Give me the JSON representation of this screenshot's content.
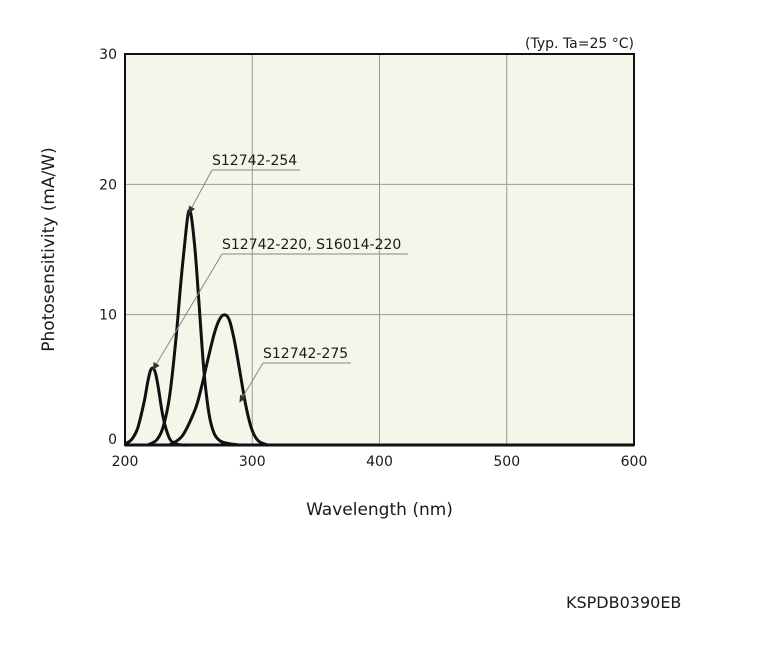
{
  "chart_data": {
    "type": "line",
    "xlabel": "Wavelength (nm)",
    "ylabel": "Photosensitivity (mA/W)",
    "condition_note": "(Typ. Ta=25 °C)",
    "xlim": [
      200,
      600
    ],
    "ylim": [
      0,
      30
    ],
    "x_ticks": [
      "200",
      "300",
      "400",
      "500",
      "600"
    ],
    "y_ticks": [
      "0",
      "10",
      "20",
      "30"
    ],
    "grid": true,
    "series": [
      {
        "name": "S12742-220, S16014-220",
        "x": [
          200,
          205,
          210,
          215,
          218,
          220,
          222,
          224,
          226,
          230,
          235,
          240,
          245,
          250
        ],
        "y": [
          0.1,
          0.4,
          1.3,
          3.3,
          4.9,
          5.7,
          5.9,
          5.5,
          4.5,
          2.1,
          0.5,
          0.1,
          0.0,
          0.0
        ]
      },
      {
        "name": "S12742-254",
        "x": [
          218,
          225,
          230,
          235,
          240,
          244,
          248,
          250,
          252,
          255,
          258,
          262,
          266,
          270,
          275,
          282,
          290
        ],
        "y": [
          0.0,
          0.4,
          1.4,
          3.7,
          8.1,
          12.6,
          16.5,
          17.9,
          17.6,
          15.0,
          11.1,
          5.7,
          2.4,
          0.9,
          0.3,
          0.1,
          0.0
        ]
      },
      {
        "name": "S12742-275",
        "x": [
          235,
          245,
          255,
          260,
          265,
          270,
          274,
          278,
          282,
          286,
          290,
          295,
          300,
          305,
          312
        ],
        "y": [
          0.0,
          0.7,
          2.7,
          4.4,
          6.5,
          8.5,
          9.6,
          10.0,
          9.6,
          8.0,
          5.8,
          3.0,
          1.1,
          0.3,
          0.0
        ]
      }
    ],
    "annotations": [
      {
        "text": "S12742-254",
        "points_to": {
          "x": 250,
          "y": 18
        }
      },
      {
        "text": "S12742-220, S16014-220",
        "points_to": {
          "x": 222,
          "y": 6
        }
      },
      {
        "text": "S12742-275",
        "points_to": {
          "x": 290,
          "y": 3.5
        }
      }
    ]
  },
  "colors": {
    "plot_background": "#f5f5ea",
    "grid": "#9a9a9a",
    "curve": "#111111",
    "frame": "#111111"
  },
  "document_code": "KSPDB0390EB"
}
